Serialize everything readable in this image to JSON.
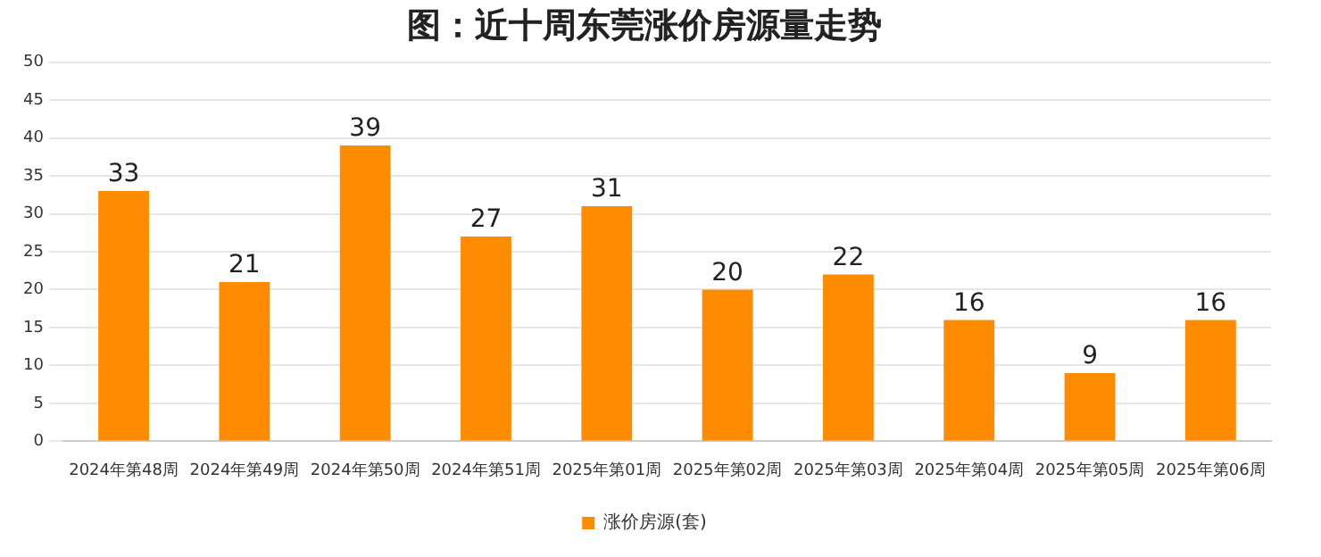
{
  "chart_data": {
    "type": "bar",
    "title": "图：近十周东莞涨价房源量走势",
    "categories": [
      "2024年第48周",
      "2024年第49周",
      "2024年第50周",
      "2024年第51周",
      "2025年第01周",
      "2025年第02周",
      "2025年第03周",
      "2025年第04周",
      "2025年第05周",
      "2025年第06周"
    ],
    "series": [
      {
        "name": "涨价房源(套)",
        "color": "#ff8c00",
        "values": [
          33,
          21,
          39,
          27,
          31,
          20,
          22,
          16,
          9,
          16
        ]
      }
    ],
    "ylim": [
      0,
      50
    ],
    "yticks": [
      0,
      5,
      10,
      15,
      20,
      25,
      30,
      35,
      40,
      45,
      50
    ],
    "grid": "y",
    "legend": "bottom",
    "data_labels": true
  }
}
